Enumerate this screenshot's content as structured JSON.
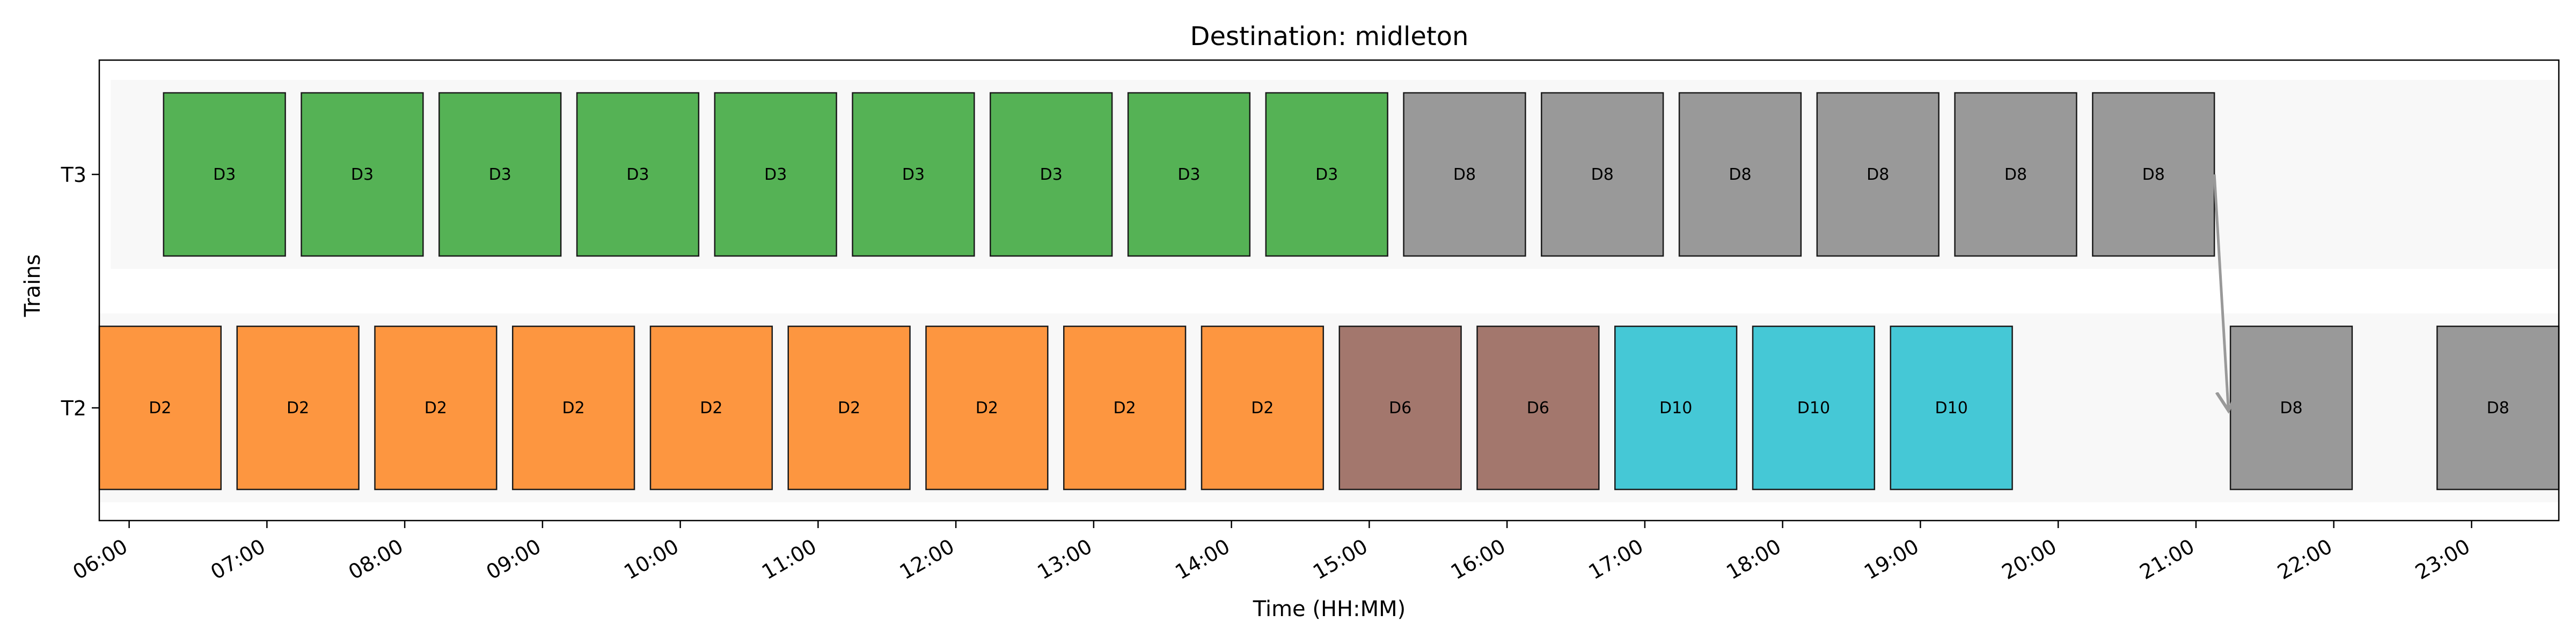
{
  "chart_data": {
    "type": "bar",
    "subtype": "gantt",
    "title": "Destination: midleton",
    "xlabel": "Time (HH:MM)",
    "ylabel": "Trains",
    "xlim": [
      "05:47",
      "23:38"
    ],
    "grid": false,
    "legend": "none",
    "x_ticks": [
      "06:00",
      "07:00",
      "08:00",
      "09:00",
      "10:00",
      "11:00",
      "12:00",
      "13:00",
      "14:00",
      "15:00",
      "16:00",
      "17:00",
      "18:00",
      "19:00",
      "20:00",
      "21:00",
      "22:00",
      "23:00"
    ],
    "categories": [
      "T3",
      "T2"
    ],
    "colors": {
      "D2": "#fd9640",
      "D3": "#55b255",
      "D6": "#a3776d",
      "D8": "#999999",
      "D10": "#45c8d6",
      "row_band": "#f8f8f8",
      "border": "#1a1a1a",
      "arrow": "#999999"
    },
    "tasks": [
      {
        "train": "T3",
        "label": "D3",
        "start": "06:15",
        "end": "07:08"
      },
      {
        "train": "T3",
        "label": "D3",
        "start": "07:15",
        "end": "08:08"
      },
      {
        "train": "T3",
        "label": "D3",
        "start": "08:15",
        "end": "09:08"
      },
      {
        "train": "T3",
        "label": "D3",
        "start": "09:15",
        "end": "10:08"
      },
      {
        "train": "T3",
        "label": "D3",
        "start": "10:15",
        "end": "11:08"
      },
      {
        "train": "T3",
        "label": "D3",
        "start": "11:15",
        "end": "12:08"
      },
      {
        "train": "T3",
        "label": "D3",
        "start": "12:15",
        "end": "13:08"
      },
      {
        "train": "T3",
        "label": "D3",
        "start": "13:15",
        "end": "14:08"
      },
      {
        "train": "T3",
        "label": "D3",
        "start": "14:15",
        "end": "15:08"
      },
      {
        "train": "T3",
        "label": "D8",
        "start": "15:15",
        "end": "16:08"
      },
      {
        "train": "T3",
        "label": "D8",
        "start": "16:15",
        "end": "17:08"
      },
      {
        "train": "T3",
        "label": "D8",
        "start": "17:15",
        "end": "18:08"
      },
      {
        "train": "T3",
        "label": "D8",
        "start": "18:15",
        "end": "19:08"
      },
      {
        "train": "T3",
        "label": "D8",
        "start": "19:15",
        "end": "20:08"
      },
      {
        "train": "T3",
        "label": "D8",
        "start": "20:15",
        "end": "21:08"
      },
      {
        "train": "T2",
        "label": "D2",
        "start": "05:47",
        "end": "06:40"
      },
      {
        "train": "T2",
        "label": "D2",
        "start": "06:47",
        "end": "07:40"
      },
      {
        "train": "T2",
        "label": "D2",
        "start": "07:47",
        "end": "08:40"
      },
      {
        "train": "T2",
        "label": "D2",
        "start": "08:47",
        "end": "09:40"
      },
      {
        "train": "T2",
        "label": "D2",
        "start": "09:47",
        "end": "10:40"
      },
      {
        "train": "T2",
        "label": "D2",
        "start": "10:47",
        "end": "11:40"
      },
      {
        "train": "T2",
        "label": "D2",
        "start": "11:47",
        "end": "12:40"
      },
      {
        "train": "T2",
        "label": "D2",
        "start": "12:47",
        "end": "13:40"
      },
      {
        "train": "T2",
        "label": "D2",
        "start": "13:47",
        "end": "14:40"
      },
      {
        "train": "T2",
        "label": "D6",
        "start": "14:47",
        "end": "15:40"
      },
      {
        "train": "T2",
        "label": "D6",
        "start": "15:47",
        "end": "16:40"
      },
      {
        "train": "T2",
        "label": "D10",
        "start": "16:47",
        "end": "17:40"
      },
      {
        "train": "T2",
        "label": "D10",
        "start": "17:47",
        "end": "18:40"
      },
      {
        "train": "T2",
        "label": "D10",
        "start": "18:47",
        "end": "19:40"
      },
      {
        "train": "T2",
        "label": "D8",
        "start": "21:15",
        "end": "22:08"
      },
      {
        "train": "T2",
        "label": "D8",
        "start": "22:45",
        "end": "23:38"
      }
    ],
    "row_spans": [
      {
        "train": "T3",
        "start": "05:52",
        "end": "23:38"
      },
      {
        "train": "T2",
        "start": "05:47",
        "end": "23:38"
      }
    ],
    "transfers": [
      {
        "from_train": "T3",
        "from_time": "21:08",
        "to_train": "T2",
        "to_time": "21:15",
        "label": "D8"
      }
    ]
  }
}
